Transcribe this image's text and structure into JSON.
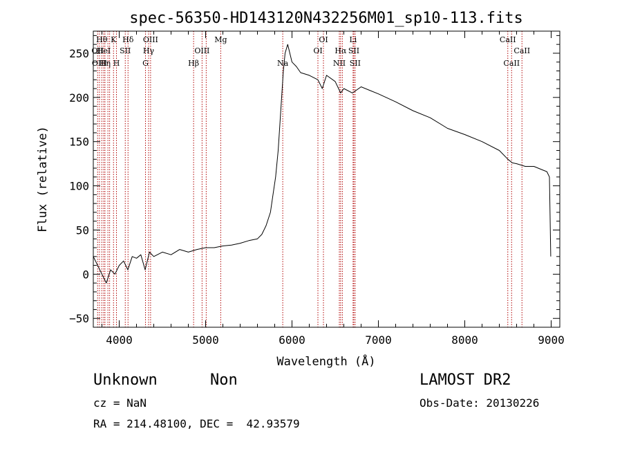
{
  "chart_data": {
    "type": "line",
    "title": "spec-56350-HD143120N432256M01_sp10-113.fits",
    "xlabel": "Wavelength (Å)",
    "ylabel": "Flux (relative)",
    "xlim": [
      3700,
      9100
    ],
    "ylim": [
      -60,
      275
    ],
    "xticks": [
      4000,
      5000,
      6000,
      7000,
      8000,
      9000
    ],
    "yticks": [
      -50,
      0,
      50,
      100,
      150,
      200,
      250
    ],
    "grid": false,
    "series": [
      {
        "x": [
          3700,
          3750,
          3800,
          3850,
          3900,
          3950,
          4000,
          4050,
          4100,
          4150,
          4200,
          4250,
          4300,
          4350,
          4400,
          4500,
          4600,
          4700,
          4800,
          4900,
          5000,
          5100,
          5200,
          5300,
          5400,
          5500,
          5600,
          5650,
          5700,
          5750,
          5780,
          5810,
          5840,
          5860,
          5880,
          5900,
          5920,
          5950,
          6000,
          6050,
          6100,
          6200,
          6300,
          6350,
          6400,
          6500,
          6563,
          6600,
          6700,
          6800,
          6900,
          7000,
          7200,
          7400,
          7600,
          7800,
          8000,
          8200,
          8400,
          8500,
          8550,
          8600,
          8700,
          8800,
          8900,
          8950,
          8980,
          8995
        ],
        "y": [
          20,
          10,
          0,
          -10,
          5,
          0,
          10,
          15,
          5,
          20,
          18,
          22,
          5,
          25,
          20,
          25,
          22,
          28,
          25,
          28,
          30,
          30,
          32,
          33,
          35,
          38,
          40,
          45,
          55,
          70,
          90,
          110,
          140,
          170,
          200,
          230,
          250,
          260,
          240,
          235,
          228,
          225,
          220,
          210,
          225,
          218,
          205,
          210,
          205,
          212,
          208,
          204,
          195,
          185,
          177,
          165,
          158,
          150,
          140,
          130,
          126,
          125,
          122,
          122,
          118,
          116,
          110,
          20
        ]
      }
    ],
    "line_marks": [
      {
        "x": 3750,
        "label": "OII",
        "row": 1
      },
      {
        "x": 3771,
        "label": "OIII",
        "row": 2
      },
      {
        "x": 3798,
        "label": "Hθ",
        "row": 0
      },
      {
        "x": 3820,
        "label": "HeI",
        "row": 1
      },
      {
        "x": 3835,
        "label": "Hη",
        "row": 2
      },
      {
        "x": 3869,
        "label": "",
        "row": 2
      },
      {
        "x": 3889,
        "label": "",
        "row": 1
      },
      {
        "x": 3934,
        "label": "K",
        "row": 0
      },
      {
        "x": 3968,
        "label": "H",
        "row": 2
      },
      {
        "x": 4070,
        "label": "SII",
        "row": 1
      },
      {
        "x": 4102,
        "label": "Hδ",
        "row": 0
      },
      {
        "x": 4304,
        "label": "G",
        "row": 2
      },
      {
        "x": 4340,
        "label": "Hγ",
        "row": 1
      },
      {
        "x": 4363,
        "label": "OIII",
        "row": 0
      },
      {
        "x": 4861,
        "label": "Hβ",
        "row": 2
      },
      {
        "x": 4959,
        "label": "OIII",
        "row": 1
      },
      {
        "x": 5007,
        "label": "",
        "row": 1
      },
      {
        "x": 5175,
        "label": "Mg",
        "row": 0
      },
      {
        "x": 5893,
        "label": "Na",
        "row": 2
      },
      {
        "x": 6300,
        "label": "OI",
        "row": 1
      },
      {
        "x": 6364,
        "label": "OI",
        "row": 0
      },
      {
        "x": 6548,
        "label": "NII",
        "row": 2
      },
      {
        "x": 6563,
        "label": "Hα",
        "row": 1
      },
      {
        "x": 6583,
        "label": "",
        "row": 2
      },
      {
        "x": 6707,
        "label": "Li",
        "row": 0
      },
      {
        "x": 6716,
        "label": "SII",
        "row": 1
      },
      {
        "x": 6731,
        "label": "SII",
        "row": 2
      },
      {
        "x": 8498,
        "label": "CaII",
        "row": 0
      },
      {
        "x": 8542,
        "label": "CaII",
        "row": 2
      },
      {
        "x": 8662,
        "label": "CaII",
        "row": 1
      }
    ]
  },
  "info": {
    "class": "Unknown",
    "subclass": "Non",
    "survey": "LAMOST DR2",
    "cz": "cz = NaN",
    "obs_date": "Obs-Date: 20130226",
    "coords": "RA = 214.48100, DEC =  42.93579"
  },
  "colors": {
    "spectrum": "#000000",
    "line_marks": "#b00000"
  }
}
